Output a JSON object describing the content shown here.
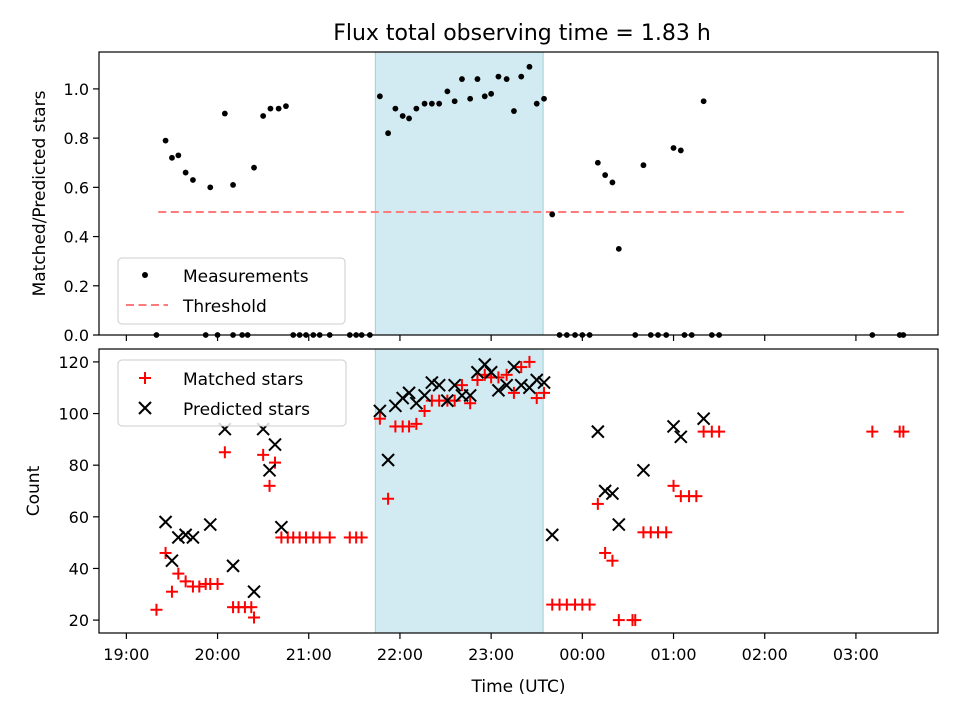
{
  "chart_data": [
    {
      "type": "scatter",
      "title": "Flux total observing time = 1.83 h",
      "xlabel": "",
      "ylabel": "Matched/Predicted stars",
      "ylim": [
        0,
        1.15
      ],
      "yticks": [
        0.0,
        0.2,
        0.4,
        0.6,
        0.8,
        1.0
      ],
      "ytick_labels": [
        "0.0",
        "0.2",
        "0.4",
        "0.6",
        "0.8",
        "1.0"
      ],
      "xlim_hours": [
        18.7,
        27.9
      ],
      "shaded_region_hours": [
        21.73,
        23.57
      ],
      "legend": [
        "Measurements",
        "Threshold"
      ],
      "legend_position": "lower-left",
      "threshold": {
        "value": 0.5,
        "x_start_hours": 19.35,
        "x_end_hours": 27.55,
        "color": "#ff7b7b"
      },
      "series": [
        {
          "name": "Measurements",
          "color": "#000000",
          "points": [
            [
              19.33,
              0.0
            ],
            [
              19.43,
              0.79
            ],
            [
              19.5,
              0.72
            ],
            [
              19.57,
              0.73
            ],
            [
              19.65,
              0.66
            ],
            [
              19.73,
              0.63
            ],
            [
              19.87,
              0.0
            ],
            [
              19.92,
              0.6
            ],
            [
              20.0,
              0.0
            ],
            [
              20.08,
              0.9
            ],
            [
              20.17,
              0.61
            ],
            [
              20.17,
              0.0
            ],
            [
              20.27,
              0.0
            ],
            [
              20.33,
              0.0
            ],
            [
              20.4,
              0.68
            ],
            [
              20.5,
              0.89
            ],
            [
              20.58,
              0.92
            ],
            [
              20.67,
              0.92
            ],
            [
              20.75,
              0.93
            ],
            [
              20.83,
              0.0
            ],
            [
              20.9,
              0.0
            ],
            [
              20.97,
              0.0
            ],
            [
              21.05,
              0.0
            ],
            [
              21.12,
              0.0
            ],
            [
              21.23,
              0.0
            ],
            [
              21.45,
              0.0
            ],
            [
              21.52,
              0.0
            ],
            [
              21.58,
              0.0
            ],
            [
              21.67,
              0.0
            ],
            [
              21.78,
              0.97
            ],
            [
              21.87,
              0.82
            ],
            [
              21.95,
              0.92
            ],
            [
              22.03,
              0.89
            ],
            [
              22.1,
              0.88
            ],
            [
              22.18,
              0.92
            ],
            [
              22.27,
              0.94
            ],
            [
              22.35,
              0.94
            ],
            [
              22.43,
              0.94
            ],
            [
              22.52,
              0.99
            ],
            [
              22.6,
              0.95
            ],
            [
              22.68,
              1.04
            ],
            [
              22.77,
              0.96
            ],
            [
              22.85,
              1.04
            ],
            [
              22.93,
              0.97
            ],
            [
              23.0,
              0.98
            ],
            [
              23.08,
              1.05
            ],
            [
              23.17,
              1.04
            ],
            [
              23.25,
              0.91
            ],
            [
              23.33,
              1.05
            ],
            [
              23.42,
              1.09
            ],
            [
              23.5,
              0.94
            ],
            [
              23.58,
              0.96
            ],
            [
              23.67,
              0.49
            ],
            [
              23.75,
              0.0
            ],
            [
              23.83,
              0.0
            ],
            [
              23.92,
              0.0
            ],
            [
              24.0,
              0.0
            ],
            [
              24.08,
              0.0
            ],
            [
              24.17,
              0.7
            ],
            [
              24.25,
              0.65
            ],
            [
              24.33,
              0.62
            ],
            [
              24.4,
              0.35
            ],
            [
              24.58,
              0.0
            ],
            [
              24.67,
              0.69
            ],
            [
              24.75,
              0.0
            ],
            [
              24.83,
              0.0
            ],
            [
              24.92,
              0.0
            ],
            [
              25.0,
              0.76
            ],
            [
              25.08,
              0.75
            ],
            [
              25.12,
              0.0
            ],
            [
              25.2,
              0.0
            ],
            [
              25.33,
              0.95
            ],
            [
              25.42,
              0.0
            ],
            [
              25.5,
              0.0
            ],
            [
              27.18,
              0.0
            ],
            [
              27.48,
              0.0
            ],
            [
              27.52,
              0.0
            ]
          ]
        }
      ]
    },
    {
      "type": "scatter",
      "title": "",
      "xlabel": "Time (UTC)",
      "ylabel": "Count",
      "ylim": [
        15,
        125
      ],
      "yticks": [
        20,
        40,
        60,
        80,
        100,
        120
      ],
      "ytick_labels": [
        "20",
        "40",
        "60",
        "80",
        "100",
        "120"
      ],
      "xlim_hours": [
        18.7,
        27.9
      ],
      "xticks_hours": [
        19,
        20,
        21,
        22,
        23,
        24,
        25,
        26,
        27
      ],
      "xtick_labels": [
        "19:00",
        "20:00",
        "21:00",
        "22:00",
        "23:00",
        "00:00",
        "01:00",
        "02:00",
        "03:00"
      ],
      "shaded_region_hours": [
        21.73,
        23.57
      ],
      "legend": [
        "Matched stars",
        "Predicted stars"
      ],
      "legend_position": "upper-left",
      "series": [
        {
          "name": "Matched stars",
          "marker": "plus",
          "color": "#ff0000",
          "points": [
            [
              19.33,
              24
            ],
            [
              19.43,
              46
            ],
            [
              19.5,
              31
            ],
            [
              19.57,
              38
            ],
            [
              19.65,
              35
            ],
            [
              19.73,
              33
            ],
            [
              19.8,
              33
            ],
            [
              19.87,
              34
            ],
            [
              19.92,
              34
            ],
            [
              20.0,
              34
            ],
            [
              20.08,
              85
            ],
            [
              20.17,
              25
            ],
            [
              20.23,
              25
            ],
            [
              20.3,
              25
            ],
            [
              20.37,
              25
            ],
            [
              20.4,
              21
            ],
            [
              20.5,
              84
            ],
            [
              20.57,
              72
            ],
            [
              20.63,
              81
            ],
            [
              20.7,
              52
            ],
            [
              20.77,
              52
            ],
            [
              20.83,
              52
            ],
            [
              20.9,
              52
            ],
            [
              20.97,
              52
            ],
            [
              21.05,
              52
            ],
            [
              21.12,
              52
            ],
            [
              21.23,
              52
            ],
            [
              21.45,
              52
            ],
            [
              21.52,
              52
            ],
            [
              21.58,
              52
            ],
            [
              21.78,
              98
            ],
            [
              21.87,
              67
            ],
            [
              21.95,
              95
            ],
            [
              22.03,
              95
            ],
            [
              22.1,
              95
            ],
            [
              22.18,
              96
            ],
            [
              22.27,
              101
            ],
            [
              22.35,
              105
            ],
            [
              22.43,
              105
            ],
            [
              22.52,
              105
            ],
            [
              22.6,
              105
            ],
            [
              22.68,
              111
            ],
            [
              22.77,
              104
            ],
            [
              22.85,
              113
            ],
            [
              22.93,
              115
            ],
            [
              23.0,
              114
            ],
            [
              23.08,
              114
            ],
            [
              23.17,
              115
            ],
            [
              23.25,
              108
            ],
            [
              23.33,
              118
            ],
            [
              23.42,
              120
            ],
            [
              23.5,
              106
            ],
            [
              23.58,
              108
            ],
            [
              23.67,
              26
            ],
            [
              23.75,
              26
            ],
            [
              23.83,
              26
            ],
            [
              23.92,
              26
            ],
            [
              24.0,
              26
            ],
            [
              24.08,
              26
            ],
            [
              24.17,
              65
            ],
            [
              24.25,
              46
            ],
            [
              24.33,
              43
            ],
            [
              24.4,
              20
            ],
            [
              24.55,
              20
            ],
            [
              24.58,
              20
            ],
            [
              24.67,
              54
            ],
            [
              24.75,
              54
            ],
            [
              24.83,
              54
            ],
            [
              24.92,
              54
            ],
            [
              25.0,
              72
            ],
            [
              25.08,
              68
            ],
            [
              25.17,
              68
            ],
            [
              25.25,
              68
            ],
            [
              25.33,
              93
            ],
            [
              25.42,
              93
            ],
            [
              25.5,
              93
            ],
            [
              27.18,
              93
            ],
            [
              27.48,
              93
            ],
            [
              27.52,
              93
            ]
          ]
        },
        {
          "name": "Predicted stars",
          "marker": "x",
          "color": "#000000",
          "points": [
            [
              19.43,
              58
            ],
            [
              19.5,
              43
            ],
            [
              19.57,
              52
            ],
            [
              19.65,
              53
            ],
            [
              19.73,
              52
            ],
            [
              19.92,
              57
            ],
            [
              20.08,
              94
            ],
            [
              20.17,
              41
            ],
            [
              20.4,
              31
            ],
            [
              20.5,
              94
            ],
            [
              20.57,
              78
            ],
            [
              20.63,
              88
            ],
            [
              20.7,
              56
            ],
            [
              21.78,
              101
            ],
            [
              21.87,
              82
            ],
            [
              21.95,
              103
            ],
            [
              22.03,
              106
            ],
            [
              22.1,
              108
            ],
            [
              22.18,
              104
            ],
            [
              22.27,
              107
            ],
            [
              22.35,
              112
            ],
            [
              22.43,
              111
            ],
            [
              22.52,
              105
            ],
            [
              22.6,
              111
            ],
            [
              22.68,
              107
            ],
            [
              22.77,
              107
            ],
            [
              22.85,
              116
            ],
            [
              22.93,
              119
            ],
            [
              23.0,
              116
            ],
            [
              23.08,
              109
            ],
            [
              23.17,
              111
            ],
            [
              23.25,
              118
            ],
            [
              23.33,
              111
            ],
            [
              23.42,
              110
            ],
            [
              23.5,
              113
            ],
            [
              23.58,
              112
            ],
            [
              23.67,
              53
            ],
            [
              24.17,
              93
            ],
            [
              24.25,
              70
            ],
            [
              24.33,
              69
            ],
            [
              24.4,
              57
            ],
            [
              24.67,
              78
            ],
            [
              25.0,
              95
            ],
            [
              25.08,
              91
            ],
            [
              25.33,
              98
            ]
          ]
        }
      ]
    }
  ]
}
